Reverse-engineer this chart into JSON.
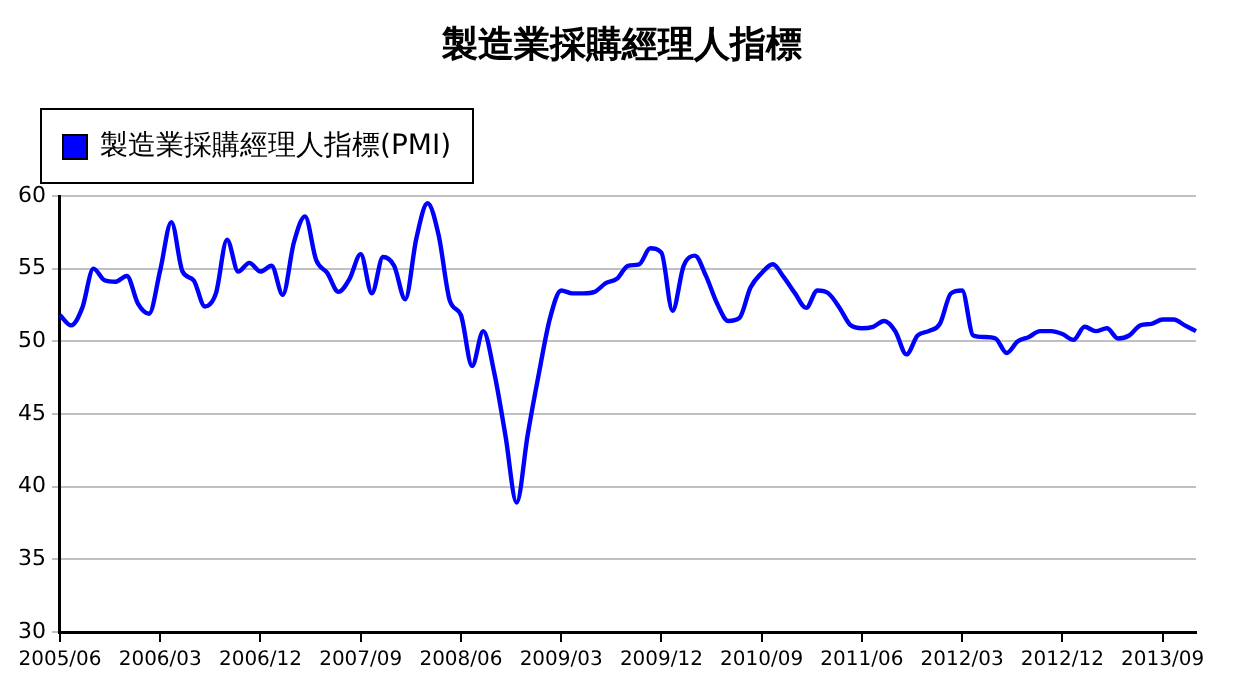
{
  "chart_data": {
    "type": "line",
    "title": "製造業採購經理人指標",
    "categories": [
      "2005/06",
      null,
      null,
      null,
      null,
      null,
      null,
      null,
      null,
      "2006/03",
      null,
      null,
      null,
      null,
      null,
      null,
      null,
      null,
      "2006/12",
      null,
      null,
      null,
      null,
      null,
      null,
      null,
      null,
      "2007/09",
      null,
      null,
      null,
      null,
      null,
      null,
      null,
      null,
      "2008/06",
      null,
      null,
      null,
      null,
      null,
      null,
      null,
      null,
      "2009/03",
      null,
      null,
      null,
      null,
      null,
      null,
      null,
      null,
      "2009/12",
      null,
      null,
      null,
      null,
      null,
      null,
      null,
      null,
      "2010/09",
      null,
      null,
      null,
      null,
      null,
      null,
      null,
      null,
      "2011/06",
      null,
      null,
      null,
      null,
      null,
      null,
      null,
      null,
      "2012/03",
      null,
      null,
      null,
      null,
      null,
      null,
      null,
      null,
      "2012/12",
      null,
      null,
      null,
      null,
      null,
      null,
      null,
      null,
      "2013/09",
      null,
      null,
      null
    ],
    "series": [
      {
        "name": "製造業採購經理人指標(PMI)",
        "color": "#0000ff",
        "values": [
          51.8,
          51.1,
          52.3,
          55.0,
          54.2,
          54.1,
          54.5,
          52.6,
          51.9,
          54.9,
          58.2,
          54.8,
          54.2,
          52.4,
          53.3,
          57.0,
          54.8,
          55.4,
          54.8,
          55.2,
          53.2,
          56.8,
          58.6,
          55.6,
          54.7,
          53.4,
          54.3,
          56.0,
          53.3,
          55.8,
          55.2,
          52.9,
          57.1,
          59.5,
          57.3,
          52.8,
          51.8,
          48.3,
          50.7,
          47.8,
          43.5,
          38.9,
          43.6,
          47.8,
          51.6,
          53.5,
          53.3,
          53.3,
          53.4,
          54.0,
          54.3,
          55.2,
          55.3,
          56.4,
          56.1,
          52.1,
          55.2,
          55.9,
          54.5,
          52.6,
          51.4,
          51.6,
          53.7,
          54.7,
          55.3,
          54.4,
          53.3,
          52.3,
          53.5,
          53.3,
          52.3,
          51.1,
          50.9,
          51.0,
          51.4,
          50.7,
          49.1,
          50.4,
          50.7,
          51.2,
          53.3,
          53.5,
          50.4,
          50.3,
          50.2,
          49.2,
          50.0,
          50.3,
          50.7,
          50.7,
          50.5,
          50.1,
          51.0,
          50.7,
          50.9,
          50.2,
          50.4,
          51.1,
          51.2,
          51.5,
          51.5,
          51.1,
          50.7
        ]
      }
    ],
    "ylim": [
      30,
      60
    ],
    "yticks": [
      30,
      35,
      40,
      45,
      50,
      55,
      60
    ],
    "grid": "y",
    "legend": "top left",
    "marker": "none",
    "line_style": "solid"
  }
}
